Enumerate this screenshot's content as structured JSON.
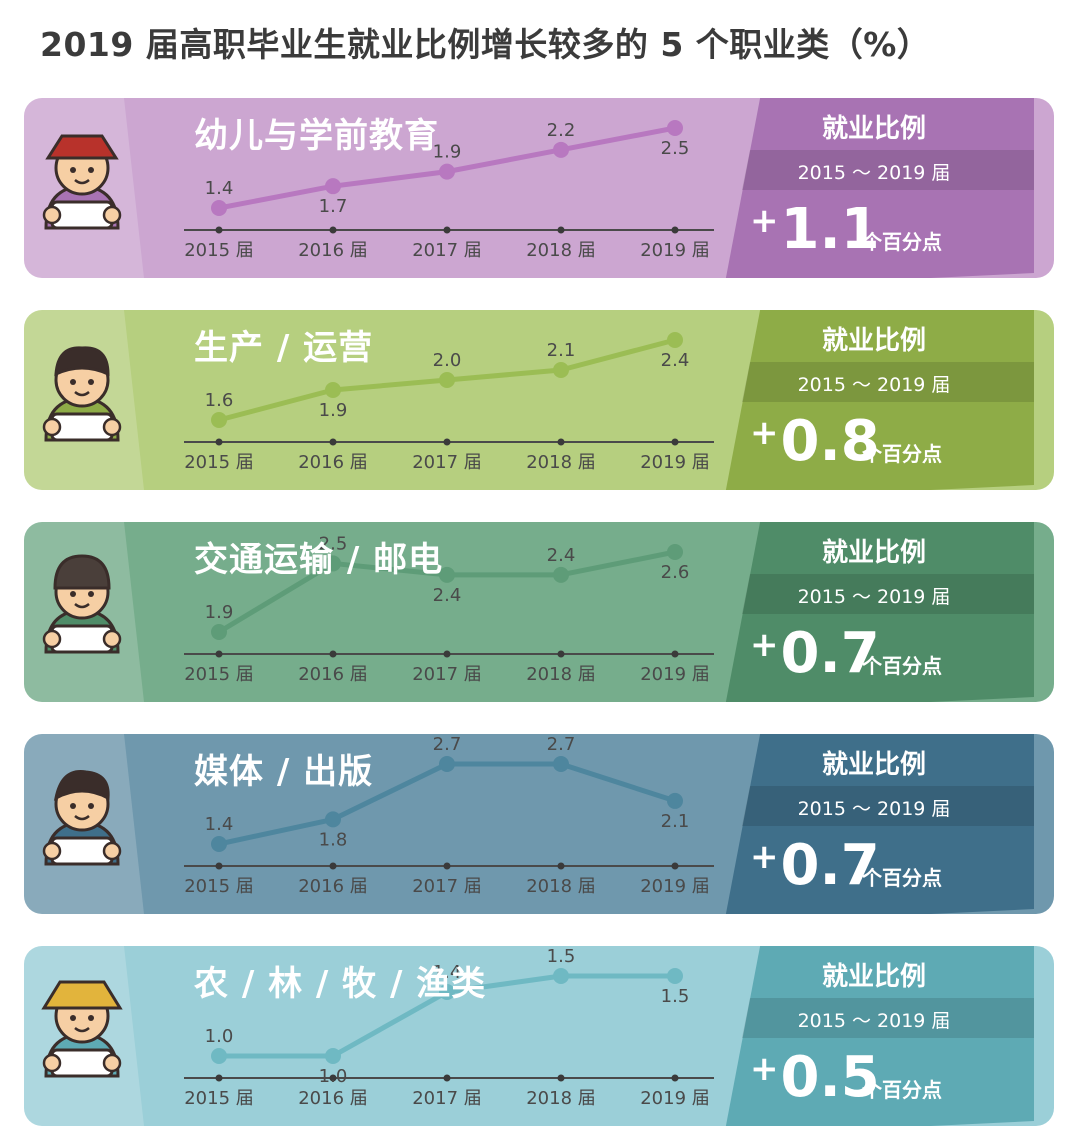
{
  "title": "2019 届高职毕业生就业比例增长较多的 5 个职业类（%）",
  "metric": {
    "label": "就业比例",
    "period": "2015 ～ 2019 届",
    "unit": "个百分点"
  },
  "chart_data": [
    {
      "type": "line",
      "title": "幼儿与学前教育",
      "categories": [
        "2015 届",
        "2016 届",
        "2017 届",
        "2018 届",
        "2019 届"
      ],
      "values": [
        1.4,
        1.7,
        1.9,
        2.2,
        2.5
      ],
      "change": "1.1",
      "colors": {
        "panel": "#cca6d1",
        "box": "#a873b3",
        "line": "#b878c0"
      }
    },
    {
      "type": "line",
      "title": "生产 / 运营",
      "categories": [
        "2015 届",
        "2016 届",
        "2017 届",
        "2018 届",
        "2019 届"
      ],
      "values": [
        1.6,
        1.9,
        2.0,
        2.1,
        2.4
      ],
      "change": "0.8",
      "colors": {
        "panel": "#b6cf7f",
        "box": "#8eac47",
        "line": "#9bbd54"
      }
    },
    {
      "type": "line",
      "title": "交通运输 / 邮电",
      "categories": [
        "2015 届",
        "2016 届",
        "2017 届",
        "2018 届",
        "2019 届"
      ],
      "values": [
        1.9,
        2.5,
        2.4,
        2.4,
        2.6
      ],
      "change": "0.7",
      "colors": {
        "panel": "#76ad8c",
        "box": "#4f8c68",
        "line": "#5e9c78"
      }
    },
    {
      "type": "line",
      "title": "媒体 / 出版",
      "categories": [
        "2015 届",
        "2016 届",
        "2017 届",
        "2018 届",
        "2019 届"
      ],
      "values": [
        1.4,
        1.8,
        2.7,
        2.7,
        2.1
      ],
      "change": "0.7",
      "colors": {
        "panel": "#6f98ad",
        "box": "#3f6f8a",
        "line": "#4e869e"
      }
    },
    {
      "type": "line",
      "title": "农 / 林 / 牧 / 渔类",
      "categories": [
        "2015 届",
        "2016 届",
        "2017 届",
        "2018 届",
        "2019 届"
      ],
      "values": [
        1.0,
        1.0,
        1.4,
        1.5,
        1.5
      ],
      "change": "0.5",
      "colors": {
        "panel": "#9bcfd8",
        "box": "#5eaab4",
        "line": "#6fb9c3"
      }
    }
  ],
  "icons": [
    "painter-avatar-icon",
    "worker-avatar-icon",
    "courier-avatar-icon",
    "reader-avatar-icon",
    "farmer-avatar-icon"
  ]
}
